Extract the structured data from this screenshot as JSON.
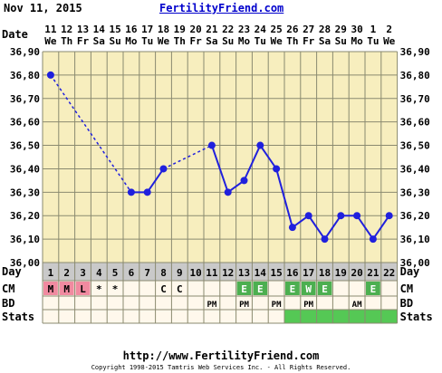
{
  "header": {
    "date": "Nov 11, 2015",
    "site": "FertilityFriend.com"
  },
  "footer": {
    "url": "http://www.FertilityFriend.com",
    "copyright": "Copyright 1998-2015 Tamtris Web Services Inc. - All Rights Reserved."
  },
  "colors": {
    "grid_bg": "#f7eebe",
    "grid_line": "#8a8a70",
    "row_gray": "#c9c9c9",
    "series": "#2020dd",
    "menses": "#f08aa0",
    "fertile": "#4caf50",
    "stats": "#55c855"
  },
  "chart_data": {
    "type": "line",
    "labels": {
      "date": "Date",
      "day": "Day",
      "cm": "CM",
      "bd": "BD",
      "stats": "Stats"
    },
    "dates": [
      "11",
      "12",
      "13",
      "14",
      "15",
      "16",
      "17",
      "18",
      "19",
      "20",
      "21",
      "22",
      "23",
      "24",
      "25",
      "26",
      "27",
      "28",
      "29",
      "30",
      "1",
      "2"
    ],
    "weekdays": [
      "We",
      "Th",
      "Fr",
      "Sa",
      "Su",
      "Mo",
      "Tu",
      "We",
      "Th",
      "Fr",
      "Sa",
      "Su",
      "Mo",
      "Tu",
      "We",
      "Th",
      "Fr",
      "Sa",
      "Su",
      "Mo",
      "Tu",
      "We"
    ],
    "days": [
      1,
      2,
      3,
      4,
      5,
      6,
      7,
      8,
      9,
      10,
      11,
      12,
      13,
      14,
      15,
      16,
      17,
      18,
      19,
      20,
      21,
      22
    ],
    "temps": [
      36.8,
      null,
      null,
      null,
      null,
      36.3,
      36.3,
      36.4,
      null,
      null,
      36.5,
      36.3,
      36.35,
      36.5,
      36.4,
      36.15,
      36.2,
      36.1,
      36.2,
      36.2,
      36.1,
      36.2
    ],
    "dashed_segments": [
      [
        1,
        6
      ],
      [
        8,
        11
      ]
    ],
    "y_ticks": [
      "36,00",
      "36,10",
      "36,20",
      "36,30",
      "36,40",
      "36,50",
      "36,60",
      "36,70",
      "36,80",
      "36,90"
    ],
    "ylim": [
      36.0,
      36.9
    ],
    "cm": [
      "M",
      "M",
      "L",
      "*",
      "*",
      "",
      "",
      "C",
      "C",
      "",
      "",
      "",
      "E",
      "E",
      "",
      "E",
      "W",
      "E",
      "",
      "",
      "E",
      ""
    ],
    "bd": [
      "",
      "",
      "",
      "",
      "",
      "",
      "",
      "",
      "",
      "",
      "PM",
      "",
      "PM",
      "",
      "PM",
      "",
      "PM",
      "",
      "",
      "AM",
      "",
      ""
    ],
    "menses_days": [
      1,
      2,
      3
    ],
    "fertile_days": [
      13,
      14,
      16,
      17,
      18,
      21
    ],
    "stats_days": [
      16,
      17,
      18,
      19,
      20,
      21,
      22
    ],
    "grid": true
  }
}
